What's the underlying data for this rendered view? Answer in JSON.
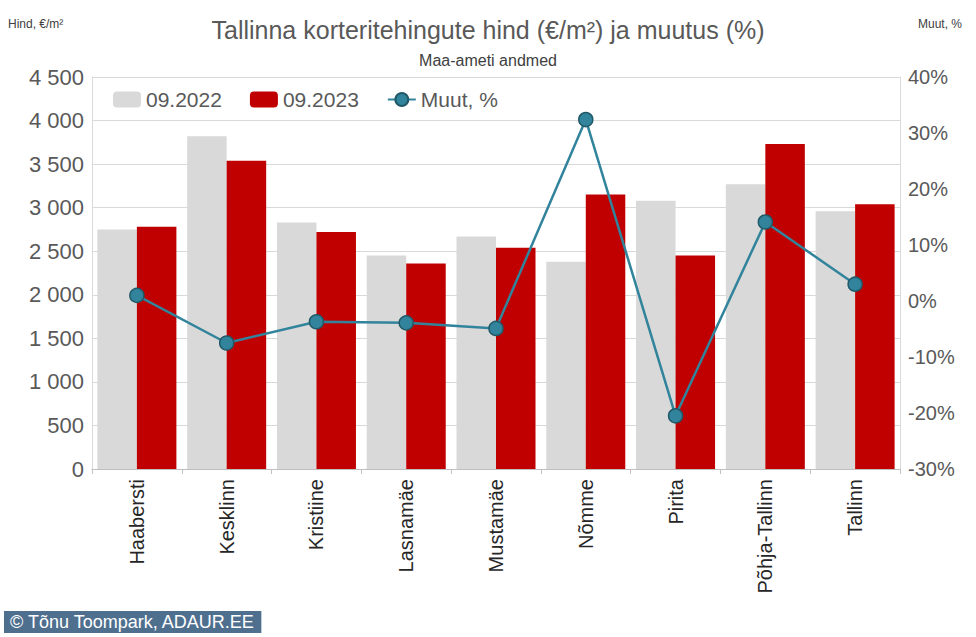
{
  "chart_data": {
    "type": "bar",
    "title": "Tallinna korteritehingute hind (€/m²) ja muutus (%)",
    "subtitle": "Maa-ameti andmed",
    "y_label": "Hind, €/m²",
    "y2_label": "Muut, %",
    "source": "© Tõnu Toompark, ADAUR.EE",
    "categories": [
      "Haabersti",
      "Kesklinn",
      "Kristiine",
      "Lasnamäe",
      "Mustamäe",
      "Nõmme",
      "Pirita",
      "Põhja-Tallinn",
      "Tallinn"
    ],
    "series": [
      {
        "name": "09.2022",
        "color": "#d9d9d9",
        "values": [
          2750,
          3820,
          2830,
          2450,
          2670,
          2380,
          3080,
          3270,
          2960
        ]
      },
      {
        "name": "09.2023",
        "color": "#c00000",
        "values": [
          2780,
          3540,
          2720,
          2360,
          2540,
          3150,
          2450,
          3730,
          3040
        ]
      },
      {
        "name": "Muut, %",
        "type": "line",
        "axis": "y2",
        "color": "#31849b",
        "marker": "circle",
        "values": [
          1.0,
          -7.5,
          -3.7,
          -3.9,
          -4.9,
          32.4,
          -20.5,
          14.1,
          3.0
        ]
      }
    ],
    "ylim": [
      0,
      4500
    ],
    "yticks": [
      0,
      500,
      {
        "value": 1000,
        "label": "1 000"
      },
      {
        "value": 1500,
        "label": "1 500"
      },
      {
        "value": 2000,
        "label": "2 000"
      },
      {
        "value": 2500,
        "label": "2 500"
      },
      {
        "value": 3000,
        "label": "3 000"
      },
      {
        "value": 3500,
        "label": "3 500"
      },
      {
        "value": 4000,
        "label": "4 000"
      },
      {
        "value": 4500,
        "label": "4 500"
      }
    ],
    "y2lim": [
      -30,
      40
    ],
    "y2ticks": [
      {
        "value": -30,
        "label": "-30%"
      },
      {
        "value": -20,
        "label": "-20%"
      },
      {
        "value": -10,
        "label": "-10%"
      },
      {
        "value": 0,
        "label": "0%"
      },
      {
        "value": 10,
        "label": "10%"
      },
      {
        "value": 20,
        "label": "20%"
      },
      {
        "value": 30,
        "label": "30%"
      },
      {
        "value": 40,
        "label": "40%"
      }
    ],
    "grid": true,
    "legend": "upper left"
  }
}
